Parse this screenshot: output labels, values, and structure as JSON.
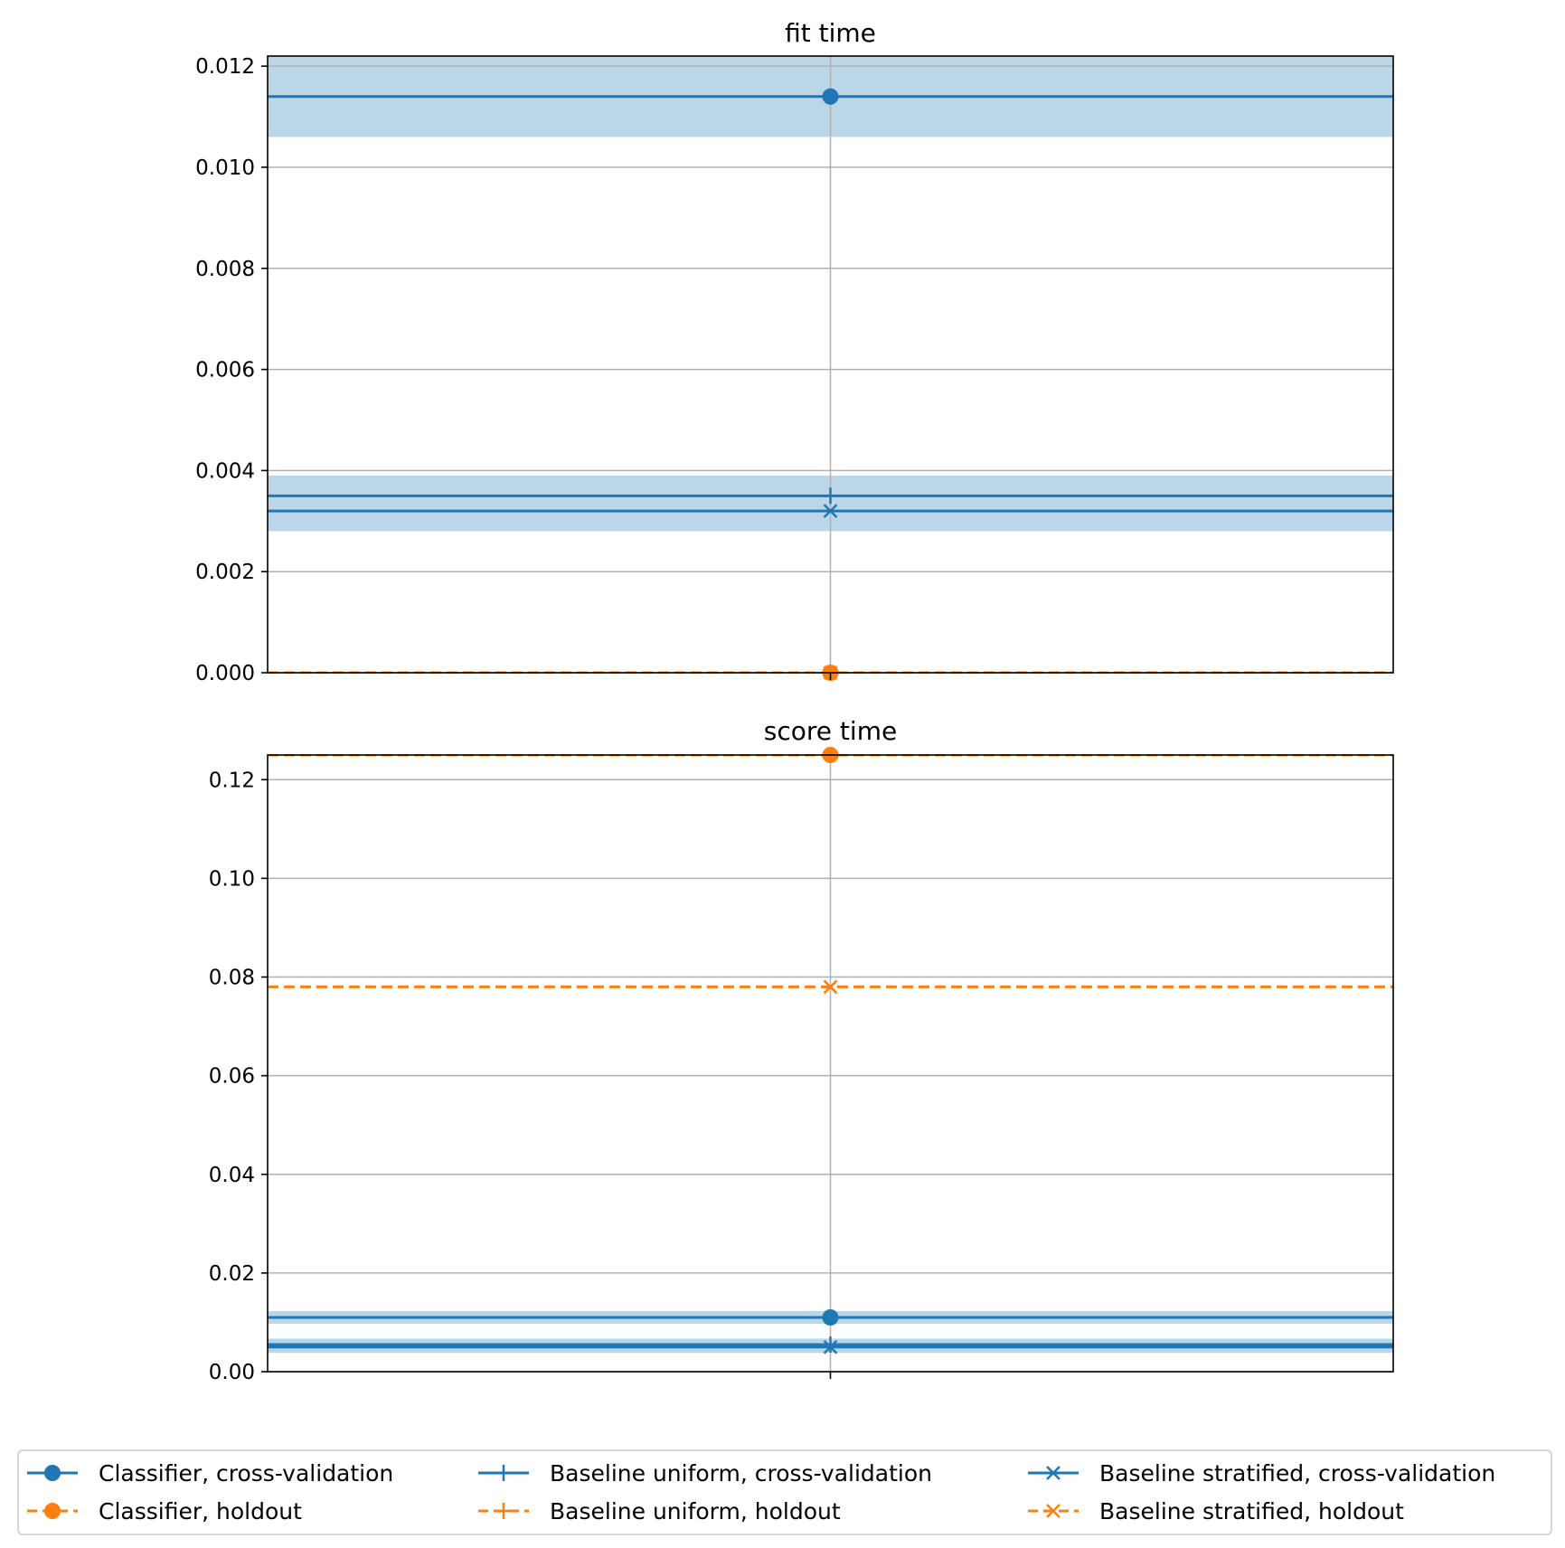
{
  "colors": {
    "blue": "#1f77b4",
    "orange": "#ff7f0e",
    "band": "#bcd6e9",
    "grid": "#b0b0b0"
  },
  "chart_data": [
    {
      "type": "line",
      "title": "fit time",
      "x": [
        0
      ],
      "ylim": [
        0,
        0.0122
      ],
      "yticks": [
        "0.000",
        "0.002",
        "0.004",
        "0.006",
        "0.008",
        "0.010",
        "0.012"
      ],
      "ytick_values": [
        0,
        0.002,
        0.004,
        0.006,
        0.008,
        0.01,
        0.012
      ],
      "grid": true,
      "series": [
        {
          "name": "Classifier, cross-validation",
          "color": "blue",
          "dash": "solid",
          "marker": "circle",
          "values": [
            0.0114
          ],
          "band": [
            0.0106,
            0.0122
          ]
        },
        {
          "name": "Classifier, holdout",
          "color": "orange",
          "dash": "dashed",
          "marker": "circle",
          "values": [
            0.0
          ]
        },
        {
          "name": "Baseline uniform, cross-validation",
          "color": "blue",
          "dash": "solid",
          "marker": "plus",
          "values": [
            0.0035
          ],
          "band": [
            0.0031,
            0.0039
          ]
        },
        {
          "name": "Baseline uniform, holdout",
          "color": "orange",
          "dash": "dashed",
          "marker": "plus",
          "values": [
            0.0
          ]
        },
        {
          "name": "Baseline stratified, cross-validation",
          "color": "blue",
          "dash": "solid",
          "marker": "x",
          "values": [
            0.0032
          ],
          "band": [
            0.0028,
            0.0036
          ]
        },
        {
          "name": "Baseline stratified, holdout",
          "color": "orange",
          "dash": "dashed",
          "marker": "x",
          "values": [
            0.0
          ]
        }
      ]
    },
    {
      "type": "line",
      "title": "score time",
      "x": [
        0
      ],
      "ylim": [
        0,
        0.125
      ],
      "yticks": [
        "0.00",
        "0.02",
        "0.04",
        "0.06",
        "0.08",
        "0.10",
        "0.12"
      ],
      "ytick_values": [
        0,
        0.02,
        0.04,
        0.06,
        0.08,
        0.1,
        0.12
      ],
      "grid": true,
      "series": [
        {
          "name": "Classifier, cross-validation",
          "color": "blue",
          "dash": "solid",
          "marker": "circle",
          "values": [
            0.011
          ],
          "band": [
            0.0097,
            0.0123
          ]
        },
        {
          "name": "Classifier, holdout",
          "color": "orange",
          "dash": "dashed",
          "marker": "circle",
          "values": [
            0.125
          ]
        },
        {
          "name": "Baseline uniform, cross-validation",
          "color": "blue",
          "dash": "solid",
          "marker": "plus",
          "values": [
            0.0055
          ],
          "band": [
            0.0043,
            0.0067
          ]
        },
        {
          "name": "Baseline uniform, holdout",
          "color": "orange",
          "dash": "dashed",
          "marker": "plus",
          "values": [
            0.125
          ]
        },
        {
          "name": "Baseline stratified, cross-validation",
          "color": "blue",
          "dash": "solid",
          "marker": "x",
          "values": [
            0.005
          ],
          "band": [
            0.0038,
            0.0062
          ]
        },
        {
          "name": "Baseline stratified, holdout",
          "color": "orange",
          "dash": "dashed",
          "marker": "x",
          "values": [
            0.078
          ]
        }
      ]
    }
  ],
  "legend": {
    "placement": "bottom",
    "entries": [
      {
        "label": "Classifier, cross-validation",
        "color": "blue",
        "dash": "solid",
        "marker": "circle"
      },
      {
        "label": "Baseline uniform, cross-validation",
        "color": "blue",
        "dash": "solid",
        "marker": "plus"
      },
      {
        "label": "Baseline stratified, cross-validation",
        "color": "blue",
        "dash": "solid",
        "marker": "x"
      },
      {
        "label": "Classifier, holdout",
        "color": "orange",
        "dash": "dashed",
        "marker": "circle"
      },
      {
        "label": "Baseline uniform, holdout",
        "color": "orange",
        "dash": "dashed",
        "marker": "plus"
      },
      {
        "label": "Baseline stratified, holdout",
        "color": "orange",
        "dash": "dashed",
        "marker": "x"
      }
    ]
  }
}
